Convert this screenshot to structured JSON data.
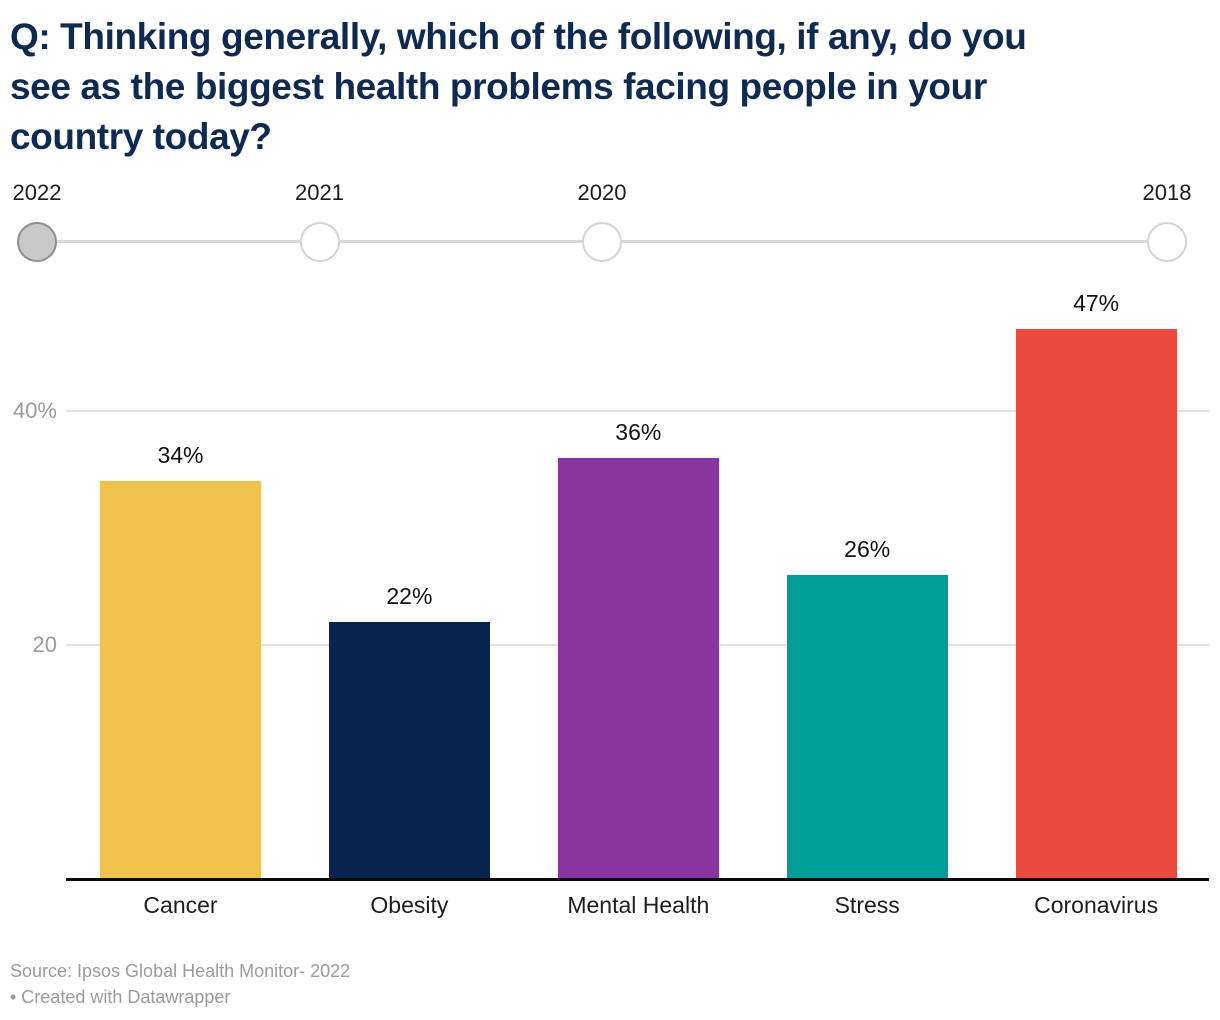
{
  "header": {
    "title_lines": [
      "Q: Thinking generally, which of the following, if any, do you",
      "see as the biggest health problems facing people in your",
      "country today?"
    ]
  },
  "timeline": {
    "years": [
      {
        "label": "2022",
        "selected": true
      },
      {
        "label": "2021",
        "selected": false
      },
      {
        "label": "2020",
        "selected": false
      },
      {
        "label": "2018",
        "selected": false
      }
    ]
  },
  "chart_data": {
    "type": "bar",
    "title": "Q: Thinking generally, which of the following, if any, do you see as the biggest health problems facing people in your country today?",
    "categories": [
      "Cancer",
      "Obesity",
      "Mental Health",
      "Stress",
      "Coronavirus"
    ],
    "values": [
      34,
      22,
      36,
      26,
      47
    ],
    "value_labels": [
      "34%",
      "22%",
      "36%",
      "26%",
      "47%"
    ],
    "colors": [
      "#F0C24D",
      "#07244E",
      "#8A34A1",
      "#009E99",
      "#EB4B3F"
    ],
    "xlabel": "",
    "ylabel": "",
    "ylim": [
      0,
      50
    ],
    "yticks": [
      {
        "value": 20,
        "label": "20"
      },
      {
        "value": 40,
        "label": "40%"
      }
    ],
    "grid": true,
    "legend": false,
    "selected_year": "2022"
  },
  "footer": {
    "source": "Source: Ipsos Global Health Monitor- 2022",
    "credit": "• Created with Datawrapper"
  }
}
